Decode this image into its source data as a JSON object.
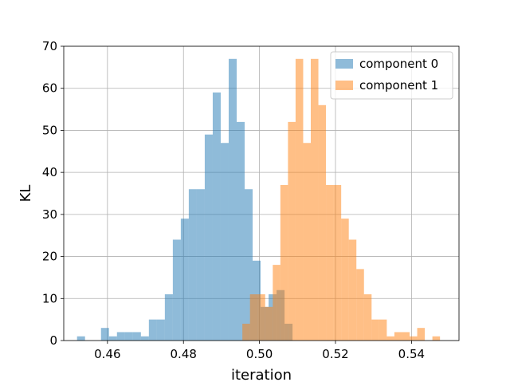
{
  "chart_data": {
    "type": "bar",
    "subtype": "overlaid-histogram",
    "title": "",
    "xlabel": "iteration",
    "ylabel": "KL",
    "xlim": [
      0.4485,
      0.5525
    ],
    "ylim": [
      0,
      70
    ],
    "xticks": [
      0.46,
      0.48,
      0.5,
      0.52,
      0.54
    ],
    "xtick_labels": [
      "0.46",
      "0.48",
      "0.50",
      "0.52",
      "0.54"
    ],
    "yticks": [
      0,
      10,
      20,
      30,
      40,
      50,
      60,
      70
    ],
    "ytick_labels": [
      "0",
      "10",
      "20",
      "30",
      "40",
      "50",
      "60",
      "70"
    ],
    "grid": true,
    "legend_position": "top-right",
    "series": [
      {
        "name": "component 0",
        "color": "#1f77b4",
        "alpha": 0.5,
        "bin_start": 0.452,
        "bin_width": 0.0021,
        "counts": [
          1,
          0,
          0,
          3,
          1,
          2,
          2,
          2,
          1,
          5,
          5,
          11,
          24,
          29,
          36,
          36,
          49,
          59,
          47,
          67,
          52,
          36,
          19,
          8,
          11,
          12,
          4
        ]
      },
      {
        "name": "component 1",
        "color": "#ff7f0e",
        "alpha": 0.5,
        "bin_start": 0.4955,
        "bin_width": 0.002,
        "counts": [
          4,
          11,
          11,
          8,
          18,
          37,
          52,
          67,
          47,
          67,
          56,
          37,
          37,
          29,
          24,
          17,
          11,
          5,
          5,
          1,
          2,
          2,
          1,
          3,
          0,
          1
        ]
      }
    ]
  }
}
